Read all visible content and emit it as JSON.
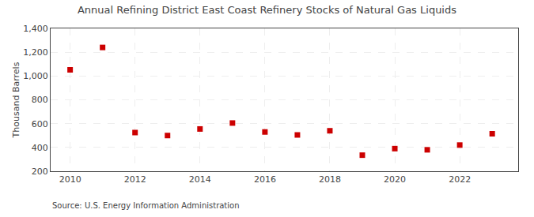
{
  "chart_data": {
    "type": "scatter",
    "title": "Annual Refining District East Coast Refinery Stocks of Natural Gas Liquids",
    "ylabel": "Thousand Barrels",
    "annotations": [
      "Source: U.S. Energy Information Administration"
    ],
    "x": [
      2010,
      2011,
      2012,
      2013,
      2014,
      2015,
      2016,
      2017,
      2018,
      2019,
      2020,
      2021,
      2022,
      2023
    ],
    "values": [
      1052,
      1240,
      525,
      500,
      555,
      605,
      530,
      505,
      540,
      335,
      390,
      380,
      420,
      515
    ],
    "color": "#cc0000",
    "marker": "square",
    "xlim": [
      2009.4,
      2023.8
    ],
    "xticks": [
      2010,
      2012,
      2014,
      2016,
      2018,
      2020,
      2022
    ],
    "ylim": [
      200,
      1400
    ],
    "yticks": [
      200,
      400,
      600,
      800,
      {
        "value": 1000,
        "label": "1,000"
      },
      {
        "value": 1200,
        "label": "1,200"
      },
      {
        "value": 1400,
        "label": "1,400"
      }
    ],
    "grid": true
  }
}
